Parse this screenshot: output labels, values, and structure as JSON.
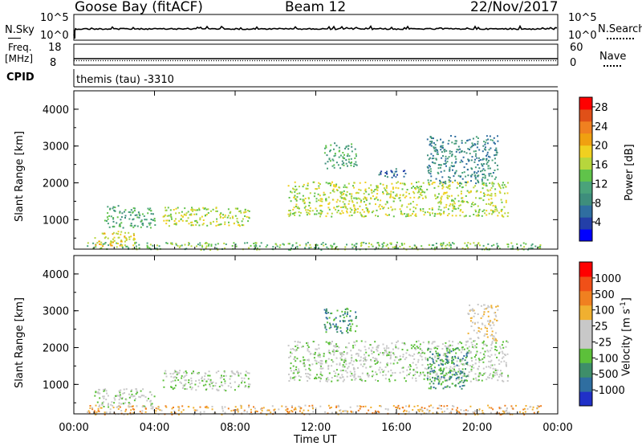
{
  "header": {
    "station": "Goose Bay (fitACF)",
    "beam": "Beam 12",
    "date": "22/Nov/2017"
  },
  "noise_panel": {
    "left_label": "N.Sky",
    "left_ticks": [
      "10^5",
      "10^0"
    ],
    "right_ticks": [
      "10^5",
      "10^0"
    ],
    "right_label": "N.Search"
  },
  "freq_panel": {
    "left_label_top": "Freq.",
    "left_label_unit": "[MHz]",
    "left_ticks": [
      "18",
      "8"
    ],
    "right_ticks": [
      "60",
      "0"
    ],
    "right_label": "Nave"
  },
  "cpid": {
    "label": "CPID",
    "program": "themis (tau) -3310"
  },
  "colors": {
    "power_scale": [
      "#0000ff",
      "#233fa8",
      "#2f6ea0",
      "#3e8e7c",
      "#4aa37a",
      "#60c34a",
      "#b7d63c",
      "#f0d020",
      "#f0a010",
      "#f08020",
      "#e05018",
      "#ff0000"
    ],
    "velocity_scale": [
      "#2030c8",
      "#2f6ea0",
      "#3e8e6a",
      "#5cc03a",
      "#c8c8c8",
      "#c8c8c8",
      "#f0b030",
      "#f08020",
      "#f05018",
      "#ff0000"
    ]
  },
  "chart_data": [
    {
      "type": "heatmap",
      "title": "",
      "xlabel": "",
      "ylabel": "Slant Range [km]",
      "x_ticks": [
        "00:00",
        "04:00",
        "08:00",
        "12:00",
        "16:00",
        "20:00",
        "00:00"
      ],
      "y_ticks": [
        "1000",
        "2000",
        "3000",
        "4000"
      ],
      "ylim": [
        200,
        4500
      ],
      "xlim_hours": [
        0,
        24
      ],
      "colorbar": {
        "label": "Power [dB]",
        "ticks": [
          "4",
          "8",
          "12",
          "16",
          "20",
          "24",
          "28"
        ],
        "range": [
          0,
          30
        ]
      },
      "echo_regions": [
        {
          "t_start": 0.6,
          "t_end": 23.2,
          "r_min": 200,
          "r_max": 400,
          "level": 5
        },
        {
          "t_start": 1.0,
          "t_end": 3.0,
          "r_min": 300,
          "r_max": 700,
          "level": 7
        },
        {
          "t_start": 1.5,
          "t_end": 4.0,
          "r_min": 800,
          "r_max": 1400,
          "level": 4
        },
        {
          "t_start": 4.4,
          "t_end": 8.7,
          "r_min": 850,
          "r_max": 1350,
          "level": 6
        },
        {
          "t_start": 10.6,
          "t_end": 21.5,
          "r_min": 1100,
          "r_max": 2050,
          "level": 6
        },
        {
          "t_start": 12.4,
          "t_end": 14.0,
          "r_min": 2400,
          "r_max": 3100,
          "level": 4
        },
        {
          "t_start": 17.5,
          "t_end": 21.0,
          "r_min": 2000,
          "r_max": 3300,
          "level": 3
        },
        {
          "t_start": 15.0,
          "t_end": 16.5,
          "r_min": 2150,
          "r_max": 2400,
          "level": 2
        }
      ]
    },
    {
      "type": "heatmap",
      "title": "",
      "xlabel": "Time UT",
      "ylabel": "Slant Range [km]",
      "x_ticks": [
        "00:00",
        "04:00",
        "08:00",
        "12:00",
        "16:00",
        "20:00",
        "00:00"
      ],
      "y_ticks": [
        "1000",
        "2000",
        "3000",
        "4000"
      ],
      "ylim": [
        200,
        4500
      ],
      "xlim_hours": [
        0,
        24
      ],
      "colorbar": {
        "label": "Velocity [m s^-1]",
        "ticks": [
          "1000",
          "500",
          "100",
          "25",
          "-25",
          "-100",
          "-500",
          "-1000"
        ],
        "range": [
          -1000,
          1000
        ]
      },
      "echo_regions": [
        {
          "t_start": 0.6,
          "t_end": 23.2,
          "r_min": 200,
          "r_max": 450,
          "level": 6
        },
        {
          "t_start": 1.0,
          "t_end": 4.0,
          "r_min": 400,
          "r_max": 900,
          "level": 4
        },
        {
          "t_start": 4.4,
          "t_end": 8.7,
          "r_min": 850,
          "r_max": 1400,
          "level": 4
        },
        {
          "t_start": 10.6,
          "t_end": 21.5,
          "r_min": 1100,
          "r_max": 2200,
          "level": 4
        },
        {
          "t_start": 12.4,
          "t_end": 14.0,
          "r_min": 2400,
          "r_max": 3100,
          "level": 2
        },
        {
          "t_start": 17.5,
          "t_end": 19.5,
          "r_min": 900,
          "r_max": 2000,
          "level": 2
        },
        {
          "t_start": 19.5,
          "t_end": 21.0,
          "r_min": 2200,
          "r_max": 3200,
          "level": 5
        }
      ]
    }
  ]
}
